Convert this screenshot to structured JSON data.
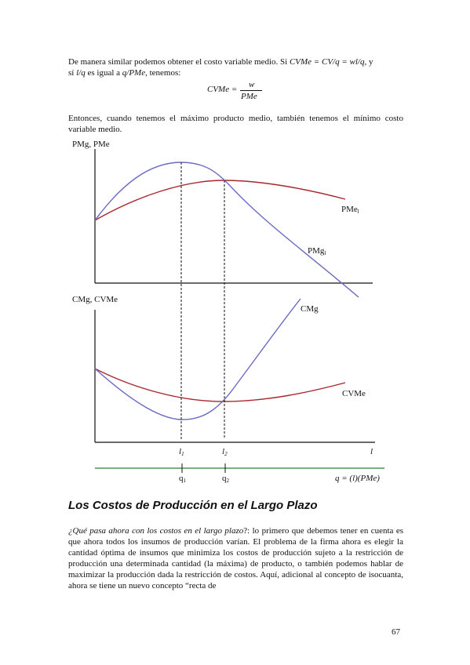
{
  "paragraph1": {
    "line1_start": "De manera similar podemos obtener el costo variable medio. Si ",
    "line1_formula": "CVMe = CV/q = wl/q",
    "line1_end": ", y",
    "line2_start": "sí ",
    "line2_var1": "l/q",
    "line2_mid": " es igual a ",
    "line2_var2": "q/PMe",
    "line2_end": ", tenemos:"
  },
  "formula": {
    "lhs": "CVMe =",
    "numerator": "w",
    "denominator": "PMe"
  },
  "paragraph2": "Entonces, cuando tenemos el máximo producto medio, también tenemos el mínimo costo variable medio.",
  "figure": {
    "top_ylabel": "PMg, PMe",
    "pme_label": "PMe",
    "pme_sub": "l",
    "pmg_label": "PMg",
    "pmg_sub": "l",
    "bottom_ylabel": "CMg, CVMe",
    "cmg_label": "CMg",
    "cvme_label": "CVMe",
    "l1": "l",
    "l1_sub": "1",
    "l2": "l",
    "l2_sub": "2",
    "l_axis": "l",
    "q1": "q",
    "q1_sub": "1",
    "q2": "q",
    "q2_sub": "2",
    "q_eq": "q = (l)(PMe)",
    "colors": {
      "marginal": "#6a6cc0",
      "average": "#a8262e",
      "q_axis": "#2e7d32"
    }
  },
  "heading": "Los Costos de Producción en el Largo Plazo",
  "paragraph3": {
    "question": "¿Qué pasa ahora con los costos en el largo plazo",
    "rest": "?: lo primero que debemos tener en cuenta es que ahora todos los insumos de producción varían. El problema de la firma ahora es elegir la cantidad óptima de insumos que minimiza los costos de producción sujeto a la restricción de producción una determinada cantidad (la máxima) de producto, o también podemos hablar de maximizar la producción dada la restricción de costos. Aquí, adicional al concepto de isocuanta, ahora se tiene un nuevo concepto “recta de"
  },
  "page_number": "67"
}
